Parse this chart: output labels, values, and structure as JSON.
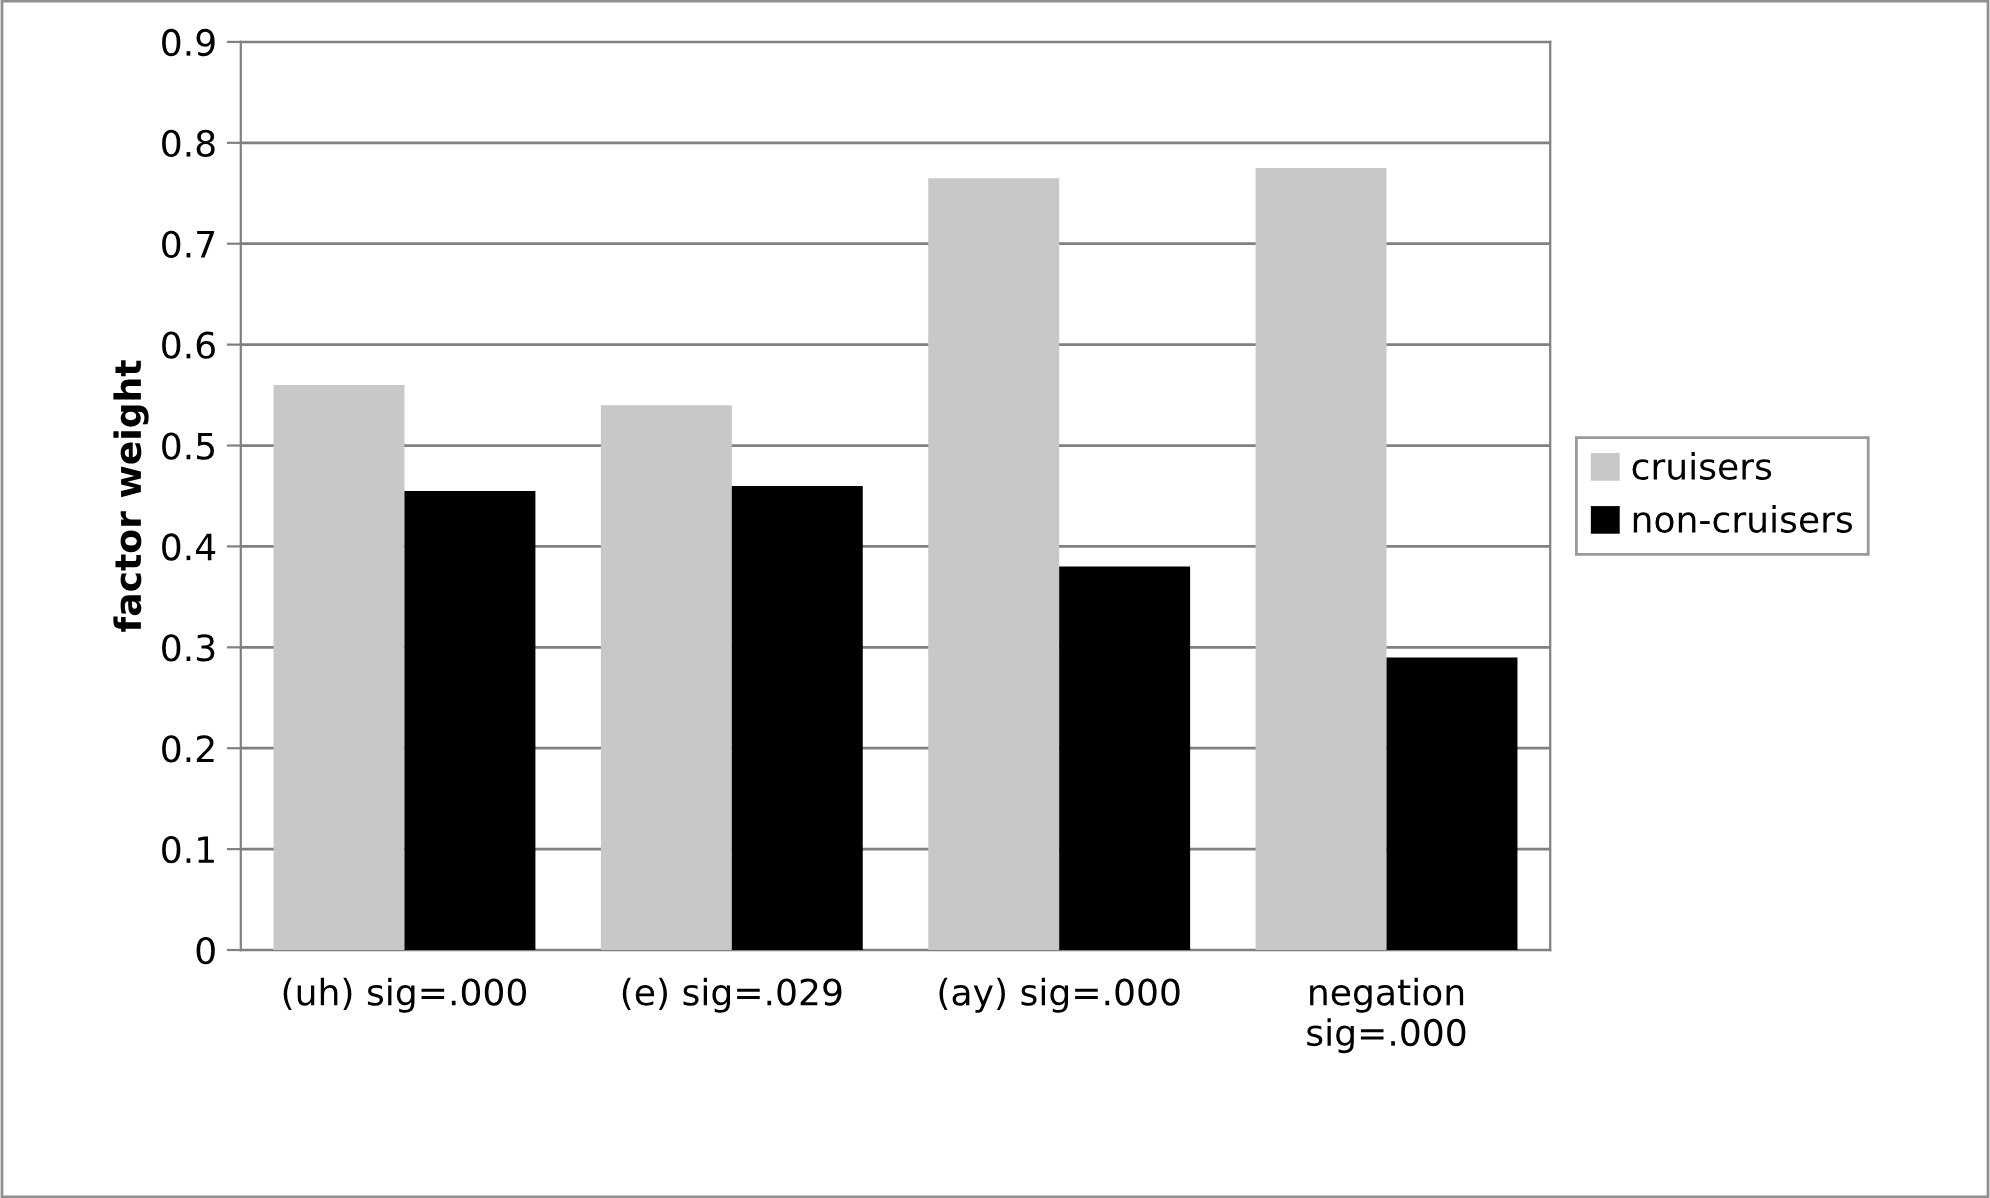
{
  "chart_data": {
    "type": "bar",
    "ylabel": "factor weight",
    "categories": [
      "(uh) sig=.000",
      "(e) sig=.029",
      "(ay) sig=.000",
      "negation\nsig=.000"
    ],
    "series": [
      {
        "name": "cruisers",
        "color": "#c8c8c8",
        "values": [
          0.56,
          0.54,
          0.765,
          0.775
        ]
      },
      {
        "name": "non-cruisers",
        "color": "#000000",
        "values": [
          0.455,
          0.46,
          0.38,
          0.29
        ]
      }
    ],
    "ylim": [
      0,
      0.9
    ],
    "yticks": [
      {
        "value": 0,
        "label": "0"
      },
      0.1,
      0.2,
      0.3,
      0.4,
      0.5,
      0.6,
      0.7,
      0.8,
      0.9
    ],
    "grid": "y",
    "legend": "right"
  }
}
